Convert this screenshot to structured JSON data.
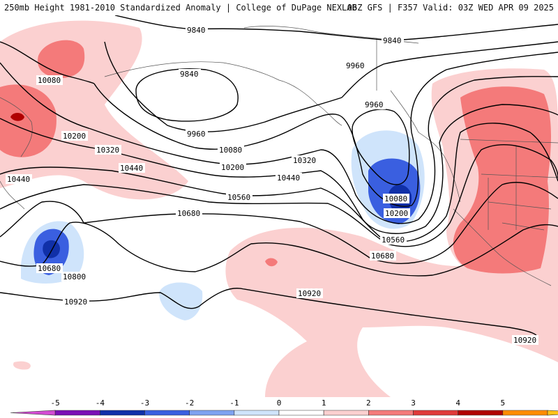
{
  "header": {
    "left_title": "250mb Height 1981-2010 Standardized Anomaly | College of DuPage NEXLAB",
    "right_title": "06Z GFS | F357 Valid: 03Z WED APR 09 2025"
  },
  "contour_labels": [
    {
      "id": "c9840a",
      "text": "9840"
    },
    {
      "id": "c9840b",
      "text": "9840"
    },
    {
      "id": "c9840c",
      "text": "9840"
    },
    {
      "id": "c9960a",
      "text": "9960"
    },
    {
      "id": "c9960b",
      "text": "9960"
    },
    {
      "id": "c9960c",
      "text": "9960"
    },
    {
      "id": "c10080a",
      "text": "10080"
    },
    {
      "id": "c10080b",
      "text": "10080"
    },
    {
      "id": "c10080c",
      "text": "10080"
    },
    {
      "id": "c10200a",
      "text": "10200"
    },
    {
      "id": "c10200b",
      "text": "10200"
    },
    {
      "id": "c10200c",
      "text": "10200"
    },
    {
      "id": "c10320a",
      "text": "10320"
    },
    {
      "id": "c10320b",
      "text": "10320"
    },
    {
      "id": "c10440a",
      "text": "10440"
    },
    {
      "id": "c10440b",
      "text": "10440"
    },
    {
      "id": "c10440c",
      "text": "10440"
    },
    {
      "id": "c10560a",
      "text": "10560"
    },
    {
      "id": "c10560b",
      "text": "10560"
    },
    {
      "id": "c10680a",
      "text": "10680"
    },
    {
      "id": "c10680b",
      "text": "10680"
    },
    {
      "id": "c10680c",
      "text": "10680"
    },
    {
      "id": "c10800a",
      "text": "10800"
    },
    {
      "id": "c10920a",
      "text": "10920"
    },
    {
      "id": "c10920b",
      "text": "10920"
    },
    {
      "id": "c10920c",
      "text": "10920"
    }
  ],
  "legend": {
    "ticks": [
      "-5",
      "-4",
      "-3",
      "-2",
      "-1",
      "0",
      "1",
      "2",
      "3",
      "4",
      "5"
    ],
    "colors": [
      "#d34cd3",
      "#7a0fb5",
      "#1030a8",
      "#3a5fe0",
      "#7ea2f0",
      "#cfe4fb",
      "#ffffff",
      "#fbd0d0",
      "#f47a7a",
      "#e03a3a",
      "#b00000",
      "#ff8c00",
      "#ffc21a"
    ]
  }
}
